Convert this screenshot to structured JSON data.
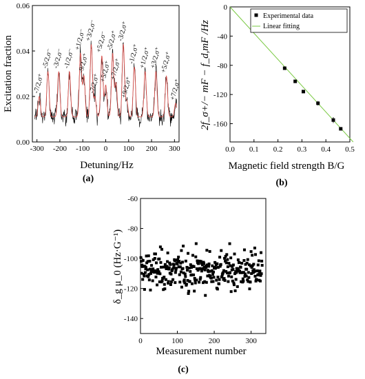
{
  "chart_data": [
    {
      "type": "line",
      "panel_label": "(a)",
      "xlabel": "Detuning/Hz",
      "ylabel": "Excitation fraction",
      "xlim": [
        -320,
        320
      ],
      "ylim": [
        0,
        0.06
      ],
      "xticks": [
        -300,
        -200,
        -100,
        0,
        100,
        200,
        300
      ],
      "yticks": [
        0.0,
        0.02,
        0.04,
        0.06
      ],
      "xtick_labels": [
        "-300",
        "-200",
        "-100",
        "0",
        "100",
        "200",
        "300"
      ],
      "ytick_labels": [
        "0.00",
        "0.02",
        "0.04",
        "0.06"
      ],
      "series": [
        {
          "color": "#000000"
        },
        {
          "color": "#d9534f"
        }
      ],
      "peaks": [
        {
          "label": "-7/2,σ⁺",
          "x": -290,
          "height": 0.02
        },
        {
          "label": "-5/2,σ⁻",
          "x": -252,
          "height": 0.031
        },
        {
          "label": "-3/2,σ⁻",
          "x": -205,
          "height": 0.031
        },
        {
          "label": "-1/2,σ⁻",
          "x": -158,
          "height": 0.031
        },
        {
          "label": "+1/2,σ⁻",
          "x": -110,
          "height": 0.039
        },
        {
          "label": "-9/2,σ⁺",
          "x": -95,
          "height": 0.029
        },
        {
          "label": "+3/2,σ⁻",
          "x": -63,
          "height": 0.043
        },
        {
          "label": "-7/2,σ⁺",
          "x": -47,
          "height": 0.02
        },
        {
          "label": "+5/2,σ⁻",
          "x": -17,
          "height": 0.038
        },
        {
          "label": "+5/2,σ⁺",
          "x": 0,
          "height": 0.025
        },
        {
          "label": "-5/2,σ⁺",
          "x": 30,
          "height": 0.039
        },
        {
          "label": "+7/2,σ⁺",
          "x": 45,
          "height": 0.026
        },
        {
          "label": "-3/2,σ⁺",
          "x": 77,
          "height": 0.043
        },
        {
          "label": "+9/2,σ⁺",
          "x": 92,
          "height": 0.018
        },
        {
          "label": "-1/2,σ⁺",
          "x": 125,
          "height": 0.033
        },
        {
          "label": "+1/2,σ⁺",
          "x": 172,
          "height": 0.031
        },
        {
          "label": "+3/2,σ⁺",
          "x": 219,
          "height": 0.031
        },
        {
          "label": "+5/2,σ⁺",
          "x": 265,
          "height": 0.029
        },
        {
          "label": "+7/2,σ⁺",
          "x": 305,
          "height": 0.017
        }
      ]
    },
    {
      "type": "scatter",
      "panel_label": "(b)",
      "xlabel": "Magnetic field strength B/G",
      "ylabel": "2f_σ+/− mF − f_d,mF /Hz",
      "xlim": [
        0,
        0.5
      ],
      "ylim": [
        -185,
        0
      ],
      "xticks": [
        0.0,
        0.1,
        0.2,
        0.3,
        0.4,
        0.5
      ],
      "yticks": [
        0,
        -40,
        -80,
        -120,
        -160
      ],
      "xtick_labels": [
        "0.0",
        "0.1",
        "0.2",
        "0.3",
        "0.4",
        "0.5"
      ],
      "ytick_labels": [
        "0",
        "-40",
        "-80",
        "-120",
        "-160"
      ],
      "legend": [
        "Experimental data",
        "Linear fitting"
      ],
      "legend_position": "top-right",
      "points": [
        {
          "x": 0.228,
          "y": -84,
          "err": 2
        },
        {
          "x": 0.272,
          "y": -102,
          "err": 2
        },
        {
          "x": 0.306,
          "y": -116,
          "err": 2
        },
        {
          "x": 0.367,
          "y": -132,
          "err": 3
        },
        {
          "x": 0.431,
          "y": -155,
          "err": 4
        },
        {
          "x": 0.462,
          "y": -167,
          "err": 2
        }
      ],
      "fit": {
        "slope": -360,
        "intercept": 0,
        "color": "#7ac943"
      }
    },
    {
      "type": "scatter",
      "panel_label": "(c)",
      "xlabel": "Measurement number",
      "ylabel": "δ_g μ_0 (Hz·G⁻¹)",
      "xlim": [
        0,
        340
      ],
      "ylim": [
        -150,
        -60
      ],
      "xticks": [
        0,
        100,
        200,
        300
      ],
      "yticks": [
        -60,
        -80,
        -100,
        -120,
        -140
      ],
      "xtick_labels": [
        "0",
        "100",
        "200",
        "300"
      ],
      "ytick_labels": [
        "-60",
        "-80",
        "-100",
        "-120",
        "-140"
      ],
      "n_points": 330,
      "mean": -108,
      "spread": 6.5
    }
  ]
}
